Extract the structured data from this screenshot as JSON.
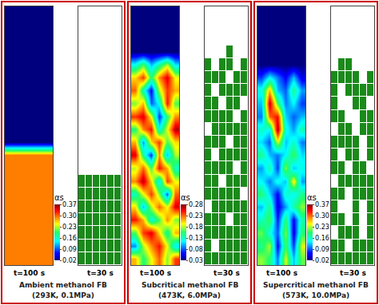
{
  "chart_data": [
    {
      "type": "heatmap",
      "title": "Ambient methanol FB",
      "subtitle": "(293K, 0.1MPa)",
      "tick_labels": false,
      "label": "t=100 s",
      "colorbar_title": "αs",
      "colorbar_range": [
        0.02,
        0.37
      ],
      "colorbar_ticks": [
        0.37,
        {
          "value": 0.3,
          "label": "0.30"
        },
        0.23,
        0.16,
        0.09,
        0.02
      ],
      "cells": [
        [
          0.02,
          0.02,
          0.02,
          0.02,
          0.02,
          0.02
        ],
        [
          0.02,
          0.02,
          0.02,
          0.02,
          0.02,
          0.02
        ],
        [
          0.02,
          0.02,
          0.02,
          0.02,
          0.02,
          0.02
        ],
        [
          0.02,
          0.02,
          0.02,
          0.02,
          0.02,
          0.02
        ],
        [
          0.02,
          0.02,
          0.02,
          0.02,
          0.02,
          0.02
        ],
        [
          0.02,
          0.02,
          0.02,
          0.02,
          0.02,
          0.02
        ],
        [
          0.02,
          0.02,
          0.02,
          0.02,
          0.02,
          0.02
        ],
        [
          0.02,
          0.02,
          0.02,
          0.02,
          0.02,
          0.02
        ],
        [
          0.02,
          0.02,
          0.02,
          0.02,
          0.02,
          0.02
        ],
        [
          0.02,
          0.02,
          0.02,
          0.02,
          0.02,
          0.02
        ],
        [
          0.02,
          0.02,
          0.02,
          0.02,
          0.02,
          0.02
        ],
        [
          0.29,
          0.29,
          0.29,
          0.29,
          0.29,
          0.29
        ],
        [
          0.29,
          0.29,
          0.29,
          0.29,
          0.29,
          0.29
        ],
        [
          0.29,
          0.29,
          0.29,
          0.29,
          0.29,
          0.29
        ],
        [
          0.29,
          0.29,
          0.29,
          0.29,
          0.29,
          0.29
        ],
        [
          0.29,
          0.29,
          0.29,
          0.29,
          0.29,
          0.29
        ],
        [
          0.29,
          0.29,
          0.29,
          0.29,
          0.29,
          0.29
        ],
        [
          0.29,
          0.29,
          0.29,
          0.29,
          0.29,
          0.29
        ],
        [
          0.29,
          0.29,
          0.29,
          0.29,
          0.29,
          0.29
        ],
        [
          0.29,
          0.29,
          0.29,
          0.29,
          0.29,
          0.29
        ]
      ],
      "particles": {
        "label": "t=30 s",
        "color": "#1a8a1a",
        "cells": [
          [
            0,
            0,
            0,
            0,
            0,
            0
          ],
          [
            0,
            0,
            0,
            0,
            0,
            0
          ],
          [
            0,
            0,
            0,
            0,
            0,
            0
          ],
          [
            0,
            0,
            0,
            0,
            0,
            0
          ],
          [
            0,
            0,
            0,
            0,
            0,
            0
          ],
          [
            0,
            0,
            0,
            0,
            0,
            0
          ],
          [
            0,
            0,
            0,
            0,
            0,
            0
          ],
          [
            0,
            0,
            0,
            0,
            0,
            0
          ],
          [
            0,
            0,
            0,
            0,
            0,
            0
          ],
          [
            0,
            0,
            0,
            0,
            0,
            0
          ],
          [
            0,
            0,
            0,
            0,
            0,
            0
          ],
          [
            0,
            0,
            0,
            0,
            0,
            0
          ],
          [
            0,
            0,
            0,
            0,
            0,
            0
          ],
          [
            1,
            1,
            1,
            1,
            1,
            1
          ],
          [
            1,
            1,
            1,
            1,
            1,
            1
          ],
          [
            1,
            1,
            1,
            1,
            1,
            1
          ],
          [
            1,
            1,
            1,
            1,
            1,
            1
          ],
          [
            1,
            1,
            1,
            1,
            1,
            1
          ],
          [
            1,
            1,
            1,
            1,
            1,
            1
          ],
          [
            1,
            1,
            1,
            1,
            1,
            1
          ]
        ]
      }
    },
    {
      "type": "heatmap",
      "title": "Subcritical methanol FB",
      "subtitle": "(473K, 6.0MPa)",
      "tick_labels": false,
      "label": "t=100 s",
      "colorbar_title": "αs",
      "colorbar_range": [
        0.03,
        0.28
      ],
      "colorbar_ticks": [
        0.28,
        0.23,
        0.18,
        0.13,
        0.08,
        0.03
      ],
      "cells": [
        [
          0.03,
          0.03,
          0.03,
          0.03,
          0.03,
          0.03
        ],
        [
          0.03,
          0.03,
          0.03,
          0.03,
          0.03,
          0.03
        ],
        [
          0.03,
          0.03,
          0.03,
          0.03,
          0.03,
          0.03
        ],
        [
          0.03,
          0.03,
          0.03,
          0.03,
          0.03,
          0.03
        ],
        [
          0.12,
          0.16,
          0.1,
          0.14,
          0.18,
          0.11
        ],
        [
          0.2,
          0.24,
          0.15,
          0.22,
          0.26,
          0.19
        ],
        [
          0.23,
          0.13,
          0.06,
          0.18,
          0.24,
          0.21
        ],
        [
          0.17,
          0.21,
          0.08,
          0.12,
          0.25,
          0.16
        ],
        [
          0.24,
          0.26,
          0.19,
          0.07,
          0.15,
          0.22
        ],
        [
          0.15,
          0.22,
          0.25,
          0.12,
          0.19,
          0.27
        ],
        [
          0.21,
          0.09,
          0.2,
          0.24,
          0.16,
          0.2
        ],
        [
          0.26,
          0.14,
          0.07,
          0.22,
          0.1,
          0.18
        ],
        [
          0.18,
          0.23,
          0.16,
          0.25,
          0.21,
          0.13
        ],
        [
          0.22,
          0.27,
          0.2,
          0.11,
          0.24,
          0.19
        ],
        [
          0.13,
          0.19,
          0.24,
          0.17,
          0.08,
          0.23
        ],
        [
          0.2,
          0.1,
          0.18,
          0.23,
          0.19,
          0.26
        ],
        [
          0.25,
          0.21,
          0.12,
          0.16,
          0.22,
          0.17
        ],
        [
          0.16,
          0.24,
          0.26,
          0.2,
          0.14,
          0.21
        ],
        [
          0.09,
          0.18,
          0.22,
          0.25,
          0.19,
          0.11
        ],
        [
          0.21,
          0.15,
          0.19,
          0.23,
          0.17,
          0.24
        ]
      ],
      "particles": {
        "label": "t=30 s",
        "color": "#1a8a1a",
        "cells": [
          [
            0,
            0,
            0,
            0,
            0,
            0
          ],
          [
            0,
            0,
            0,
            0,
            0,
            0
          ],
          [
            0,
            0,
            0,
            0,
            0,
            0
          ],
          [
            0,
            0,
            0,
            1,
            0,
            0
          ],
          [
            1,
            0,
            1,
            1,
            0,
            1
          ],
          [
            1,
            1,
            1,
            0,
            1,
            1
          ],
          [
            1,
            0,
            1,
            1,
            1,
            1
          ],
          [
            1,
            1,
            0,
            1,
            1,
            0
          ],
          [
            1,
            1,
            1,
            1,
            0,
            1
          ],
          [
            0,
            1,
            1,
            1,
            1,
            1
          ],
          [
            1,
            1,
            1,
            0,
            1,
            1
          ],
          [
            1,
            0,
            1,
            1,
            1,
            1
          ],
          [
            1,
            1,
            1,
            1,
            0,
            1
          ],
          [
            1,
            1,
            0,
            1,
            1,
            1
          ],
          [
            1,
            1,
            1,
            1,
            1,
            0
          ],
          [
            0,
            1,
            1,
            1,
            1,
            1
          ],
          [
            1,
            1,
            1,
            0,
            1,
            1
          ],
          [
            1,
            1,
            1,
            1,
            1,
            1
          ],
          [
            1,
            0,
            1,
            1,
            1,
            1
          ],
          [
            1,
            1,
            1,
            1,
            1,
            1
          ]
        ]
      }
    },
    {
      "type": "heatmap",
      "title": "Supercritical methanol FB",
      "subtitle": "(573K, 10.0MPa)",
      "tick_labels": false,
      "label": "t=100 s",
      "colorbar_title": "αs",
      "colorbar_range": [
        0.02,
        0.37
      ],
      "colorbar_ticks": [
        0.37,
        {
          "value": 0.3,
          "label": "0.30"
        },
        0.23,
        0.16,
        0.09,
        0.02
      ],
      "cells": [
        [
          0.02,
          0.02,
          0.02,
          0.02,
          0.02,
          0.02
        ],
        [
          0.02,
          0.02,
          0.02,
          0.02,
          0.02,
          0.02
        ],
        [
          0.02,
          0.02,
          0.02,
          0.02,
          0.02,
          0.02
        ],
        [
          0.02,
          0.02,
          0.02,
          0.02,
          0.02,
          0.02
        ],
        [
          0.02,
          0.02,
          0.02,
          0.02,
          0.02,
          0.02
        ],
        [
          0.08,
          0.14,
          0.1,
          0.06,
          0.12,
          0.05
        ],
        [
          0.15,
          0.27,
          0.12,
          0.09,
          0.18,
          0.11
        ],
        [
          0.12,
          0.35,
          0.2,
          0.1,
          0.14,
          0.08
        ],
        [
          0.1,
          0.3,
          0.33,
          0.13,
          0.09,
          0.12
        ],
        [
          0.16,
          0.14,
          0.36,
          0.15,
          0.11,
          0.17
        ],
        [
          0.13,
          0.09,
          0.24,
          0.12,
          0.16,
          0.1
        ],
        [
          0.18,
          0.12,
          0.1,
          0.14,
          0.2,
          0.13
        ],
        [
          0.11,
          0.17,
          0.08,
          0.22,
          0.12,
          0.15
        ],
        [
          0.14,
          0.1,
          0.15,
          0.12,
          0.26,
          0.11
        ],
        [
          0.19,
          0.13,
          0.06,
          0.16,
          0.14,
          0.18
        ],
        [
          0.12,
          0.18,
          0.05,
          0.11,
          0.17,
          0.22
        ],
        [
          0.16,
          0.2,
          0.07,
          0.19,
          0.06,
          0.17
        ],
        [
          0.21,
          0.15,
          0.09,
          0.22,
          0.05,
          0.19
        ],
        [
          0.18,
          0.23,
          0.06,
          0.2,
          0.08,
          0.24
        ],
        [
          0.22,
          0.19,
          0.1,
          0.24,
          0.12,
          0.21
        ]
      ],
      "particles": {
        "label": "t=30 s",
        "color": "#1a8a1a",
        "cells": [
          [
            0,
            0,
            0,
            0,
            0,
            0
          ],
          [
            0,
            0,
            0,
            0,
            0,
            0
          ],
          [
            0,
            0,
            0,
            0,
            0,
            0
          ],
          [
            0,
            0,
            0,
            0,
            0,
            0
          ],
          [
            0,
            1,
            1,
            0,
            0,
            0
          ],
          [
            1,
            1,
            1,
            1,
            0,
            1
          ],
          [
            1,
            0,
            1,
            1,
            1,
            1
          ],
          [
            1,
            0,
            0,
            1,
            1,
            0
          ],
          [
            1,
            1,
            0,
            0,
            1,
            1
          ],
          [
            0,
            1,
            1,
            0,
            1,
            1
          ],
          [
            1,
            1,
            1,
            1,
            0,
            1
          ],
          [
            1,
            0,
            1,
            1,
            0,
            1
          ],
          [
            1,
            1,
            0,
            1,
            1,
            0
          ],
          [
            0,
            1,
            1,
            1,
            1,
            1
          ],
          [
            1,
            1,
            0,
            1,
            1,
            1
          ],
          [
            1,
            0,
            0,
            1,
            0,
            1
          ],
          [
            1,
            1,
            0,
            1,
            0,
            1
          ],
          [
            0,
            1,
            1,
            1,
            0,
            1
          ],
          [
            1,
            1,
            0,
            1,
            1,
            1
          ],
          [
            1,
            1,
            1,
            1,
            1,
            1
          ]
        ]
      }
    }
  ]
}
